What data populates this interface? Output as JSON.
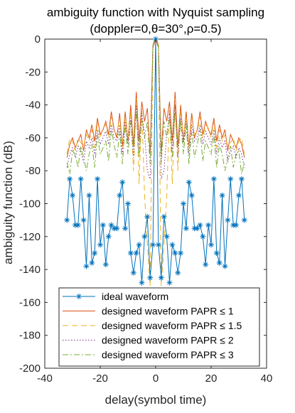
{
  "chart_data": {
    "type": "line",
    "title": "ambiguity function with Nyquist sampling",
    "subtitle": "(doppler=0,θ=30°,ρ=0.5)",
    "xlabel": "delay(symbol time)",
    "ylabel": "ambiguity function (dB)",
    "xlim": [
      -40,
      40
    ],
    "ylim": [
      -200,
      0
    ],
    "xticks": [
      "-40",
      "-20",
      "0",
      "20",
      "40"
    ],
    "yticks": [
      "0",
      "-20",
      "-40",
      "-60",
      "-80",
      "-100",
      "-120",
      "-140",
      "-160",
      "-180",
      "-200"
    ],
    "grid": false,
    "legend_position": "bottom",
    "x": [
      -32,
      -31,
      -30,
      -29,
      -28,
      -27,
      -26,
      -25,
      -24,
      -23,
      -22,
      -21,
      -20,
      -19,
      -18,
      -17,
      -16,
      -15,
      -14,
      -13,
      -12,
      -11,
      -10,
      -9,
      -8,
      -7,
      -6,
      -5,
      -4,
      -3,
      -2,
      -1,
      0,
      1,
      2,
      3,
      4,
      5,
      6,
      7,
      8,
      9,
      10,
      11,
      12,
      13,
      14,
      15,
      16,
      17,
      18,
      19,
      20,
      21,
      22,
      23,
      24,
      25,
      26,
      27,
      28,
      29,
      30,
      31,
      32
    ],
    "series": [
      {
        "name": "ideal waveform",
        "color": "#0072BD",
        "style": "solid",
        "marker": "asterisk",
        "values": [
          -110,
          -85,
          -95,
          -113,
          -113,
          -85,
          -110,
          -138,
          -95,
          -136,
          -130,
          -85,
          -125,
          -113,
          -137,
          -120,
          -113,
          -115,
          -115,
          -95,
          -87,
          -115,
          -100,
          -130,
          -142,
          -130,
          -125,
          -148,
          -120,
          -108,
          -145,
          -125,
          0,
          -125,
          -145,
          -108,
          -120,
          -148,
          -125,
          -130,
          -142,
          -130,
          -100,
          -115,
          -87,
          -95,
          -115,
          -115,
          -113,
          -120,
          -137,
          -113,
          -125,
          -85,
          -130,
          -136,
          -95,
          -138,
          -110,
          -85,
          -113,
          -113,
          -95,
          -85,
          -110
        ]
      },
      {
        "name": "designed waveform PAPR ≤ 1",
        "color": "#D95319",
        "style": "solid",
        "marker": "none",
        "values": [
          -72,
          -64,
          -60,
          -66,
          -62,
          -58,
          -68,
          -55,
          -60,
          -52,
          -62,
          -48,
          -58,
          -55,
          -50,
          -58,
          -44,
          -55,
          -60,
          -45,
          -65,
          -44,
          -62,
          -40,
          -65,
          -32,
          -62,
          -38,
          -50,
          -42,
          -70,
          -5,
          0,
          -5,
          -70,
          -42,
          -50,
          -38,
          -62,
          -32,
          -65,
          -40,
          -62,
          -44,
          -65,
          -45,
          -60,
          -55,
          -44,
          -58,
          -50,
          -55,
          -58,
          -48,
          -62,
          -52,
          -60,
          -55,
          -68,
          -58,
          -62,
          -66,
          -60,
          -64,
          -72
        ]
      },
      {
        "name": "designed waveform PAPR ≤ 1.5",
        "color": "#EDB120",
        "style": "dashed",
        "marker": "none",
        "values": [
          -70,
          -60,
          -62,
          -68,
          -60,
          -63,
          -65,
          -58,
          -62,
          -55,
          -66,
          -50,
          -60,
          -54,
          -52,
          -60,
          -47,
          -56,
          -58,
          -48,
          -66,
          -47,
          -60,
          -44,
          -80,
          -36,
          -88,
          -42,
          -95,
          -125,
          -150,
          -3,
          0,
          -3,
          -150,
          -125,
          -95,
          -42,
          -88,
          -36,
          -80,
          -44,
          -60,
          -47,
          -66,
          -48,
          -58,
          -56,
          -47,
          -60,
          -52,
          -54,
          -60,
          -50,
          -66,
          -55,
          -62,
          -58,
          -65,
          -63,
          -60,
          -68,
          -62,
          -60,
          -70
        ]
      },
      {
        "name": "designed waveform PAPR ≤ 2",
        "color": "#7E2F8E",
        "style": "dotted",
        "marker": "none",
        "values": [
          -78,
          -70,
          -66,
          -72,
          -65,
          -68,
          -75,
          -62,
          -66,
          -60,
          -70,
          -55,
          -64,
          -60,
          -56,
          -64,
          -52,
          -60,
          -62,
          -52,
          -70,
          -50,
          -64,
          -48,
          -72,
          -40,
          -68,
          -45,
          -58,
          -80,
          -85,
          -5,
          0,
          -5,
          -85,
          -80,
          -58,
          -45,
          -68,
          -40,
          -72,
          -48,
          -64,
          -50,
          -70,
          -52,
          -62,
          -60,
          -52,
          -64,
          -56,
          -60,
          -64,
          -55,
          -70,
          -60,
          -66,
          -62,
          -75,
          -68,
          -65,
          -72,
          -66,
          -70,
          -78
        ]
      },
      {
        "name": "designed waveform PAPR ≤ 3",
        "color": "#77AC30",
        "style": "dashdot",
        "marker": "none",
        "values": [
          -75,
          -82,
          -68,
          -70,
          -78,
          -65,
          -72,
          -80,
          -70,
          -64,
          -78,
          -58,
          -70,
          -66,
          -62,
          -74,
          -55,
          -64,
          -72,
          -56,
          -76,
          -52,
          -70,
          -50,
          -66,
          -44,
          -72,
          -48,
          -60,
          -50,
          -76,
          -3,
          0,
          -3,
          -76,
          -50,
          -60,
          -48,
          -72,
          -44,
          -66,
          -50,
          -70,
          -52,
          -76,
          -56,
          -72,
          -64,
          -55,
          -74,
          -62,
          -66,
          -70,
          -58,
          -78,
          -64,
          -70,
          -80,
          -72,
          -65,
          -78,
          -70,
          -68,
          -82,
          -75
        ]
      }
    ]
  }
}
